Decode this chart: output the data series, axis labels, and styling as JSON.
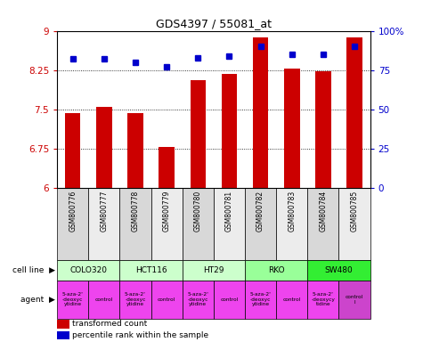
{
  "title": "GDS4397 / 55081_at",
  "samples": [
    "GSM800776",
    "GSM800777",
    "GSM800778",
    "GSM800779",
    "GSM800780",
    "GSM800781",
    "GSM800782",
    "GSM800783",
    "GSM800784",
    "GSM800785"
  ],
  "transformed_count": [
    7.43,
    7.55,
    7.43,
    6.78,
    8.05,
    8.18,
    8.88,
    8.28,
    8.22,
    8.88
  ],
  "percentile_rank": [
    82,
    82,
    80,
    77,
    83,
    84,
    90,
    85,
    85,
    90
  ],
  "ylim_left": [
    6,
    9
  ],
  "ylim_right": [
    0,
    100
  ],
  "yticks_left": [
    6,
    6.75,
    7.5,
    8.25,
    9
  ],
  "yticks_right": [
    0,
    25,
    50,
    75,
    100
  ],
  "bar_color": "#cc0000",
  "dot_color": "#0000cc",
  "cell_lines": [
    {
      "name": "COLO320",
      "span": [
        0,
        2
      ],
      "color": "#ccffcc"
    },
    {
      "name": "HCT116",
      "span": [
        2,
        4
      ],
      "color": "#ccffcc"
    },
    {
      "name": "HT29",
      "span": [
        4,
        6
      ],
      "color": "#ccffcc"
    },
    {
      "name": "RKO",
      "span": [
        6,
        8
      ],
      "color": "#99ff99"
    },
    {
      "name": "SW480",
      "span": [
        8,
        10
      ],
      "color": "#33ee33"
    }
  ],
  "agents": [
    {
      "name": "5-aza-2'\n-deoxyc\nytidine",
      "span": [
        0,
        1
      ],
      "color": "#ee44ee"
    },
    {
      "name": "control",
      "span": [
        1,
        2
      ],
      "color": "#ee44ee"
    },
    {
      "name": "5-aza-2'\n-deoxyc\nytidine",
      "span": [
        2,
        3
      ],
      "color": "#ee44ee"
    },
    {
      "name": "control",
      "span": [
        3,
        4
      ],
      "color": "#ee44ee"
    },
    {
      "name": "5-aza-2'\n-deoxyc\nytidine",
      "span": [
        4,
        5
      ],
      "color": "#ee44ee"
    },
    {
      "name": "control",
      "span": [
        5,
        6
      ],
      "color": "#ee44ee"
    },
    {
      "name": "5-aza-2'\n-deoxyc\nytidine",
      "span": [
        6,
        7
      ],
      "color": "#ee44ee"
    },
    {
      "name": "control",
      "span": [
        7,
        8
      ],
      "color": "#ee44ee"
    },
    {
      "name": "5-aza-2'\n-deoxycy\ntidine",
      "span": [
        8,
        9
      ],
      "color": "#ee44ee"
    },
    {
      "name": "control\nl",
      "span": [
        9,
        10
      ],
      "color": "#cc44cc"
    }
  ],
  "sample_bg_colors": [
    "#d8d8d8",
    "#ececec",
    "#d8d8d8",
    "#ececec",
    "#d8d8d8",
    "#ececec",
    "#d8d8d8",
    "#ececec",
    "#d8d8d8",
    "#ececec"
  ],
  "left_label_color": "#cc0000",
  "right_label_color": "#0000cc",
  "grid_color": "#000000",
  "fig_width": 4.75,
  "fig_height": 3.84
}
